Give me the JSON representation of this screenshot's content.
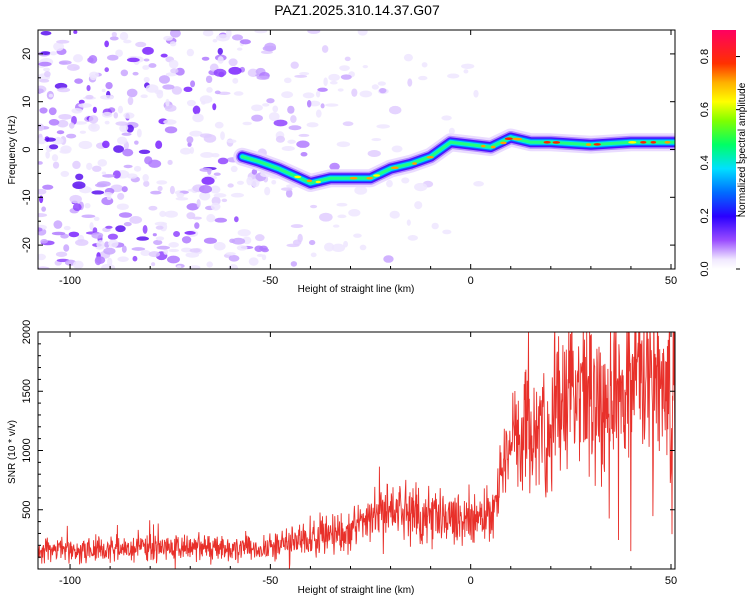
{
  "title": "PAZ1.2025.310.14.37.G07",
  "chart_data": [
    {
      "type": "heatmap",
      "xlabel": "Height of straight line (km)",
      "ylabel": "Frequency (Hz)",
      "xlim": [
        -108,
        51
      ],
      "ylim": [
        -25,
        25
      ],
      "xticks": [
        -100,
        -50,
        0,
        50
      ],
      "yticks": [
        -20,
        -10,
        0,
        10,
        20
      ],
      "ridge": {
        "x": [
          -57,
          -53,
          -48,
          -44,
          -40,
          -35,
          -30,
          -25,
          -20,
          -15,
          -10,
          -5,
          0,
          5,
          10,
          15,
          20,
          30,
          40,
          51
        ],
        "y": [
          -1.5,
          -2.5,
          -4,
          -5.5,
          -7,
          -6,
          -6,
          -6,
          -4,
          -3,
          -1.5,
          1.5,
          1,
          0.5,
          2.5,
          1.5,
          1.5,
          1,
          1.5,
          1.5
        ]
      },
      "colorbar": {
        "label": "Normalized spectral amplitude",
        "range": [
          0,
          0.9
        ],
        "ticks": [
          0.0,
          0.2,
          0.4,
          0.6,
          0.8
        ]
      }
    },
    {
      "type": "line",
      "xlabel": "Height of straight line (km)",
      "ylabel": "SNR (10 * v/v)",
      "xlim": [
        -108,
        51
      ],
      "ylim": [
        0,
        2000
      ],
      "xticks": [
        -100,
        -50,
        0,
        50
      ],
      "yticks": [
        500,
        1000,
        1500,
        2000
      ],
      "color": "#e8302a",
      "series": [
        {
          "name": "SNR",
          "x": [
            -108,
            -100,
            -90,
            -80,
            -70,
            -60,
            -50,
            -45,
            -40,
            -35,
            -30,
            -25,
            -20,
            -15,
            -10,
            -5,
            0,
            5,
            8,
            10,
            12,
            15,
            20,
            25,
            30,
            35,
            40,
            45,
            50,
            51
          ],
          "y": [
            150,
            160,
            170,
            180,
            180,
            170,
            180,
            220,
            270,
            300,
            340,
            420,
            500,
            470,
            430,
            420,
            420,
            450,
            900,
            1000,
            1100,
            1150,
            1300,
            1380,
            1450,
            1520,
            1580,
            1600,
            1580,
            1550
          ]
        }
      ]
    }
  ]
}
